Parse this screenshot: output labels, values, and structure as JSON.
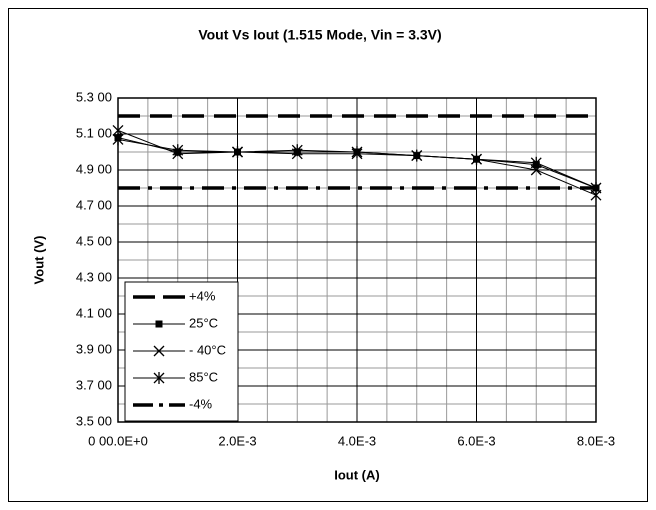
{
  "chart_data": {
    "type": "line",
    "title": "Vout Vs Iout (1.515 Mode, Vin = 3.3V)",
    "x_label": "Iout (A)",
    "y_label": "Vout (V)",
    "xlim": [
      0,
      0.008
    ],
    "xticks": [
      {
        "value": 0,
        "label": "0 00.0E+0"
      },
      {
        "value": 0.002,
        "label": "2.0E-3"
      },
      {
        "value": 0.004,
        "label": "4.0E-3"
      },
      {
        "value": 0.006,
        "label": "6.0E-3"
      },
      {
        "value": 0.008,
        "label": "8.0E-3"
      }
    ],
    "xminorticks": [
      0.0005,
      0.001,
      0.0015,
      0.0025,
      0.003,
      0.0035,
      0.0045,
      0.005,
      0.0055,
      0.0065,
      0.007,
      0.0075
    ],
    "ylim": [
      3.5,
      5.3
    ],
    "yticks": [
      {
        "value": 3.5,
        "label": "3.5 00"
      },
      {
        "value": 3.7,
        "label": "3.7 00"
      },
      {
        "value": 3.9,
        "label": "3.9 00"
      },
      {
        "value": 4.1,
        "label": "4.1 00"
      },
      {
        "value": 4.3,
        "label": "4.3 00"
      },
      {
        "value": 4.5,
        "label": "4.5 00"
      },
      {
        "value": 4.7,
        "label": "4.7 00"
      },
      {
        "value": 4.9,
        "label": "4.9 00"
      },
      {
        "value": 5.1,
        "label": "5.1 00"
      },
      {
        "value": 5.3,
        "label": "5.3 00"
      }
    ],
    "yminorticks": [
      3.6,
      3.8,
      4.0,
      4.2,
      4.4,
      4.6,
      4.8,
      5.0,
      5.2
    ],
    "grid": true,
    "legend": "lower-left",
    "series": [
      {
        "name": "+4%",
        "color": "#000000",
        "style": "dashed",
        "x": [
          0,
          0.008
        ],
        "values": [
          5.2,
          5.2
        ]
      },
      {
        "name": "25°C",
        "color": "#000000",
        "marker": "square",
        "x": [
          0,
          0.001,
          0.002,
          0.003,
          0.004,
          0.005,
          0.006,
          0.007,
          0.008
        ],
        "values": [
          5.08,
          5.0,
          5.0,
          5.0,
          5.0,
          4.98,
          4.96,
          4.93,
          4.8
        ]
      },
      {
        "name": "- 40°C",
        "color": "#000000",
        "marker": "x",
        "x": [
          0,
          0.001,
          0.002,
          0.003,
          0.004,
          0.005,
          0.006,
          0.007,
          0.008
        ],
        "values": [
          5.12,
          4.99,
          5.0,
          4.99,
          4.99,
          4.98,
          4.96,
          4.9,
          4.76
        ]
      },
      {
        "name": "85°C",
        "color": "#000000",
        "marker": "star",
        "x": [
          0,
          0.001,
          0.002,
          0.003,
          0.004,
          0.005,
          0.006,
          0.007,
          0.008
        ],
        "values": [
          5.07,
          5.01,
          5.0,
          5.01,
          5.0,
          4.98,
          4.96,
          4.94,
          4.8
        ]
      },
      {
        "name": "-4%",
        "color": "#000000",
        "style": "dashdot",
        "x": [
          0,
          0.008
        ],
        "values": [
          4.8,
          4.8
        ]
      }
    ]
  }
}
